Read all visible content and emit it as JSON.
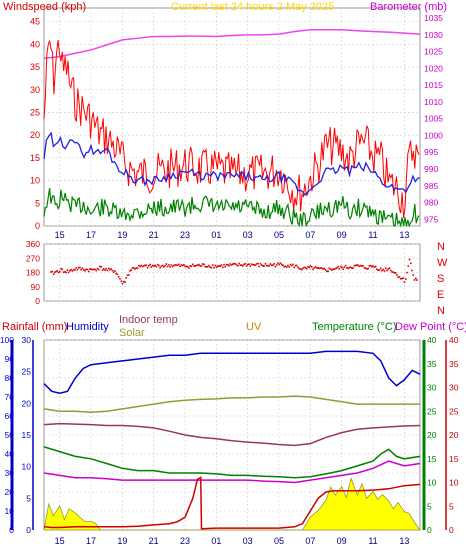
{
  "colors": {
    "wind_speed": "#ff0000",
    "wind_gust": "#ff0000",
    "wind_avg": "#2222dd",
    "wind_low": "#008000",
    "barometer": "#ee44ee",
    "wind_dir": "#dd0000",
    "humidity": "#0000cc",
    "indoor_temp": "#993366",
    "solar": "#999933",
    "uv_fill": "#ffff00",
    "uv_line": "#999933",
    "temperature": "#008000",
    "dew_point": "#cc00cc",
    "rain": "#cc0000",
    "grid": "#cccccc",
    "title": "#ffd700",
    "uv_label": "#cc8800",
    "temp_label": "#008000",
    "dew_label": "#cc00cc"
  },
  "chart_data": [
    {
      "type": "line",
      "title": "Current last 24 hours 2 May 2025",
      "ylabel_left": "Windspeed (kph)",
      "ylabel_right": "Barometer (mb)",
      "x_ticks": [
        "15",
        "17",
        "19",
        "21",
        "23",
        "01",
        "03",
        "05",
        "07",
        "09",
        "11",
        "13"
      ],
      "y_left_ticks": [
        "0",
        "5",
        "10",
        "15",
        "20",
        "25",
        "30",
        "35",
        "40",
        "45"
      ],
      "y_right_ticks": [
        "975",
        "980",
        "985",
        "990",
        "995",
        "1000",
        "1005",
        "1010",
        "1015",
        "1020",
        "1025",
        "1030",
        "1035"
      ],
      "ylim_left": [
        0,
        48
      ],
      "ylim_right": [
        973,
        1038
      ],
      "xlim_hours": [
        14.0,
        38.0
      ],
      "series": [
        {
          "name": "gust",
          "axis": "left",
          "x": [
            14.0,
            14.2,
            14.4,
            14.6,
            14.8,
            15.0,
            15.2,
            15.4,
            15.7,
            16.0,
            16.5,
            17.0,
            17.5,
            18.0,
            18.5,
            19.0,
            19.5,
            20.0,
            21.0,
            22.0,
            23.0,
            24.0,
            25.0,
            26.0,
            27.0,
            28.0,
            29.0,
            30.0,
            30.5,
            31.0,
            31.5,
            32.0,
            32.5,
            33.0,
            33.5,
            34.0,
            34.5,
            35.0,
            35.5,
            36.0,
            36.5,
            37.0,
            37.3,
            37.6,
            38.0
          ],
          "values": [
            28,
            40,
            46,
            36,
            42,
            45,
            38,
            40,
            35,
            32,
            30,
            28,
            25,
            24,
            22,
            19,
            17,
            16,
            16,
            17,
            18,
            17,
            17,
            16,
            16,
            16,
            17,
            12,
            12,
            15,
            18,
            22,
            22,
            21,
            19,
            22,
            23,
            20,
            19,
            14,
            13,
            10,
            19,
            22,
            18
          ]
        },
        {
          "name": "average",
          "axis": "left",
          "x": [
            14.0,
            14.2,
            14.4,
            14.6,
            14.8,
            15.0,
            15.2,
            15.4,
            15.7,
            16.0,
            16.5,
            17.0,
            17.5,
            18.0,
            18.5,
            19.0,
            19.5,
            20.0,
            21.0,
            22.0,
            23.0,
            24.0,
            25.0,
            26.0,
            27.0,
            28.0,
            29.0,
            30.0,
            30.5,
            31.0,
            31.5,
            32.0,
            32.5,
            33.0,
            33.5,
            34.0,
            34.5,
            35.0,
            35.5,
            36.0,
            36.5,
            37.0,
            37.3,
            37.6,
            38.0
          ],
          "values": [
            15,
            19,
            20,
            18,
            17,
            19,
            18,
            18,
            20,
            18,
            16,
            17,
            16,
            17,
            14,
            12,
            11,
            10,
            10,
            11,
            12,
            11,
            11,
            11,
            11,
            10,
            11,
            9,
            7,
            8,
            10,
            12,
            12,
            13,
            12,
            13,
            13,
            12,
            10,
            9,
            8,
            8,
            9,
            11,
            10
          ]
        },
        {
          "name": "lull",
          "axis": "left",
          "x": [
            14.0,
            14.2,
            14.4,
            14.6,
            14.8,
            15.0,
            15.2,
            15.4,
            15.7,
            16.0,
            16.5,
            17.0,
            17.5,
            18.0,
            18.5,
            19.0,
            19.5,
            20.0,
            21.0,
            22.0,
            23.0,
            24.0,
            25.0,
            26.0,
            27.0,
            28.0,
            29.0,
            30.0,
            30.5,
            31.0,
            31.5,
            32.0,
            32.5,
            33.0,
            33.5,
            34.0,
            34.5,
            35.0,
            35.5,
            36.0,
            36.5,
            37.0,
            37.3,
            37.6,
            38.0
          ],
          "values": [
            5,
            8,
            9,
            7,
            6,
            8,
            9,
            7,
            7,
            6,
            7,
            5,
            6,
            6,
            5,
            4,
            5,
            5,
            6,
            6,
            6,
            7,
            6,
            6,
            6,
            5,
            6,
            4,
            3,
            4,
            5,
            6,
            6,
            7,
            5,
            6,
            6,
            5,
            4,
            3,
            3,
            2,
            4,
            5,
            4
          ]
        },
        {
          "name": "barometer",
          "axis": "right",
          "x": [
            14.0,
            15.0,
            16.0,
            17.0,
            18.0,
            19.0,
            20.0,
            21.0,
            22.0,
            23.0,
            24.0,
            25.0,
            26.0,
            27.0,
            28.0,
            29.0,
            30.0,
            31.0,
            32.0,
            33.0,
            34.0,
            35.0,
            36.0,
            37.0,
            38.0
          ],
          "values": [
            1023.0,
            1023.5,
            1024.5,
            1025.5,
            1027.0,
            1028.5,
            1029.0,
            1029.5,
            1029.5,
            1029.6,
            1029.6,
            1029.5,
            1029.8,
            1030.0,
            1030.0,
            1030.2,
            1031.0,
            1031.5,
            1031.5,
            1031.5,
            1031.2,
            1031.0,
            1030.8,
            1030.5,
            1030.2
          ]
        }
      ]
    },
    {
      "type": "scatter",
      "ylabel_right_letters": [
        "N",
        "W",
        "S",
        "E",
        "N"
      ],
      "y_ticks": [
        "0",
        "90",
        "180",
        "270",
        "360"
      ],
      "ylim": [
        0,
        360
      ],
      "xlim_hours": [
        14.0,
        38.0
      ],
      "series": [
        {
          "name": "wind direction",
          "x": [
            14.5,
            15.0,
            15.5,
            16.0,
            16.5,
            17.0,
            17.5,
            18.0,
            18.5,
            19.0,
            19.5,
            20.0,
            21.0,
            22.0,
            23.0,
            24.0,
            25.0,
            26.0,
            27.0,
            28.0,
            29.0,
            30.0,
            30.5,
            31.0,
            31.5,
            32.0,
            32.5,
            33.0,
            33.5,
            34.0,
            34.5,
            35.0,
            35.5,
            36.0,
            36.5,
            37.0,
            37.3,
            37.6
          ],
          "values": [
            180,
            200,
            190,
            210,
            205,
            200,
            215,
            200,
            195,
            110,
            205,
            220,
            225,
            230,
            225,
            230,
            225,
            230,
            235,
            230,
            235,
            225,
            205,
            215,
            205,
            200,
            210,
            215,
            220,
            225,
            215,
            225,
            200,
            210,
            170,
            130,
            270,
            140
          ]
        }
      ]
    },
    {
      "type": "line",
      "labels": {
        "rainfall": "Rainfall (mm)",
        "humidity": "Humidity",
        "indoor_temp": "Indoor temp",
        "solar": "Solar",
        "uv": "UV",
        "temperature": "Temperature (°C)",
        "dew_point": "Dew Point (°C)"
      },
      "x_ticks": [
        "15",
        "17",
        "19",
        "21",
        "23",
        "01",
        "03",
        "05",
        "07",
        "09",
        "11",
        "13"
      ],
      "y_left1_ticks": [
        "0",
        "10",
        "20",
        "30",
        "40",
        "50",
        "60",
        "70",
        "80",
        "90",
        "100"
      ],
      "y_left2_ticks": [
        "0",
        "5",
        "10",
        "15",
        "20",
        "25",
        "30"
      ],
      "y_right1_ticks": [
        "0",
        "5",
        "10",
        "15",
        "20",
        "25",
        "30",
        "35",
        "40"
      ],
      "y_right2_ticks": [
        "0",
        "5",
        "10",
        "15",
        "20",
        "25",
        "30",
        "35",
        "40"
      ],
      "ylim_humidity": [
        0,
        100
      ],
      "ylim_rain": [
        0,
        30
      ],
      "ylim_temp": [
        0,
        40
      ],
      "xlim_hours": [
        14.0,
        38.0
      ],
      "series": [
        {
          "name": "humidity",
          "axis": "humidity",
          "x": [
            14.0,
            14.5,
            15.0,
            15.5,
            16.0,
            16.5,
            17.0,
            18.0,
            19.0,
            20.0,
            21.0,
            22.0,
            23.0,
            24.0,
            25.0,
            26.0,
            27.0,
            28.0,
            29.0,
            30.0,
            31.0,
            32.0,
            33.0,
            34.0,
            35.0,
            35.5,
            36.0,
            36.5,
            37.0,
            37.5,
            38.0
          ],
          "values": [
            77,
            73,
            72,
            73,
            80,
            85,
            87,
            88,
            89,
            90,
            91,
            92,
            92,
            93,
            93,
            93,
            93,
            93,
            93,
            93,
            93,
            94,
            94,
            94,
            93,
            89,
            80,
            76,
            79,
            84,
            82
          ]
        },
        {
          "name": "solar",
          "axis": "temp",
          "x": [
            14.0,
            15.0,
            16.0,
            17.0,
            18.0,
            19.0,
            20.0,
            21.0,
            22.0,
            23.0,
            24.0,
            25.0,
            26.0,
            27.0,
            28.0,
            29.0,
            30.0,
            31.0,
            32.0,
            33.0,
            34.0,
            35.0,
            36.0,
            37.0,
            38.0
          ],
          "values": [
            25.5,
            25.0,
            25.0,
            24.8,
            25.0,
            25.5,
            26.0,
            26.5,
            27.0,
            27.3,
            27.5,
            27.6,
            27.8,
            27.8,
            28.0,
            28.0,
            28.2,
            28.0,
            27.5,
            27.0,
            26.5,
            26.5,
            26.5,
            26.5,
            26.5
          ]
        },
        {
          "name": "indoor temp",
          "axis": "temp",
          "x": [
            14.0,
            15.0,
            16.0,
            17.0,
            18.0,
            19.0,
            20.0,
            21.0,
            22.0,
            23.0,
            24.0,
            25.0,
            26.0,
            27.0,
            28.0,
            29.0,
            30.0,
            31.0,
            32.0,
            33.0,
            34.0,
            35.0,
            36.0,
            37.0,
            38.0
          ],
          "values": [
            22.2,
            22.4,
            22.3,
            22.2,
            22.0,
            22.0,
            21.8,
            21.5,
            20.8,
            20.0,
            19.5,
            19.2,
            18.8,
            18.5,
            18.3,
            18.0,
            17.8,
            18.2,
            19.5,
            20.5,
            21.2,
            21.5,
            21.7,
            21.9,
            22.0
          ]
        },
        {
          "name": "temperature",
          "axis": "temp",
          "x": [
            14.0,
            15.0,
            16.0,
            17.0,
            18.0,
            19.0,
            20.0,
            21.0,
            22.0,
            23.0,
            24.0,
            25.0,
            26.0,
            27.0,
            28.0,
            29.0,
            30.0,
            31.0,
            32.0,
            33.0,
            34.0,
            35.0,
            35.5,
            36.0,
            36.5,
            37.0,
            38.0
          ],
          "values": [
            17.5,
            16.5,
            15.5,
            15.0,
            14.0,
            13.0,
            12.5,
            12.5,
            12.0,
            12.0,
            12.0,
            11.8,
            11.5,
            11.5,
            11.3,
            11.2,
            11.0,
            11.2,
            11.8,
            12.5,
            13.5,
            14.5,
            16.0,
            17.0,
            15.5,
            15.0,
            15.5
          ]
        },
        {
          "name": "dew point",
          "axis": "temp",
          "x": [
            14.0,
            15.0,
            16.0,
            17.0,
            18.0,
            19.0,
            20.0,
            21.0,
            22.0,
            23.0,
            24.0,
            25.0,
            26.0,
            27.0,
            28.0,
            29.0,
            30.0,
            31.0,
            32.0,
            33.0,
            34.0,
            35.0,
            36.0,
            37.0,
            38.0
          ],
          "values": [
            12.0,
            11.5,
            11.0,
            11.0,
            10.8,
            10.5,
            10.5,
            10.5,
            10.5,
            10.5,
            10.5,
            10.5,
            10.5,
            10.5,
            10.3,
            10.2,
            10.0,
            10.5,
            11.0,
            11.5,
            12.0,
            13.0,
            14.5,
            13.5,
            14.0
          ]
        },
        {
          "name": "rainfall",
          "axis": "rain",
          "x": [
            14.0,
            14.5,
            15.0,
            16.0,
            17.0,
            17.5,
            18.0,
            19.0,
            20.0,
            21.0,
            22.0,
            22.5,
            23.0,
            23.5,
            23.8,
            24.0,
            24.05,
            25.0,
            26.0,
            27.0,
            28.0,
            29.0,
            30.0,
            30.5,
            31.0,
            31.5,
            32.0,
            32.5,
            33.0,
            34.0,
            35.0,
            36.0,
            37.0,
            38.0
          ],
          "values": [
            0.5,
            0.4,
            0.4,
            0.5,
            0.5,
            0.5,
            0.5,
            0.5,
            0.6,
            0.8,
            1.0,
            1.3,
            2.0,
            5.0,
            8.0,
            8.3,
            0.2,
            0.3,
            0.3,
            0.3,
            0.3,
            0.3,
            0.5,
            1.0,
            3.0,
            5.0,
            6.0,
            6.2,
            6.2,
            6.2,
            6.3,
            6.5,
            7.0,
            7.2
          ]
        },
        {
          "name": "uv",
          "axis": "temp",
          "x": [
            14.0,
            14.3,
            14.6,
            15.0,
            15.3,
            15.6,
            16.0,
            16.3,
            16.6,
            17.0,
            17.3,
            17.5,
            17.6,
            30.5,
            31.0,
            31.5,
            32.0,
            32.3,
            32.6,
            33.0,
            33.3,
            33.6,
            34.0,
            34.3,
            34.6,
            35.0,
            35.3,
            35.6,
            36.0,
            36.3,
            36.6,
            37.0,
            37.3,
            37.6,
            38.0
          ],
          "values": [
            0,
            5,
            3,
            4,
            2,
            3,
            3,
            2,
            1,
            1,
            0.5,
            0.3,
            0,
            0,
            2,
            4,
            6,
            8,
            7,
            9,
            6,
            10,
            7,
            9,
            6,
            8,
            5,
            7,
            6,
            4,
            5,
            3,
            2,
            1,
            0
          ]
        }
      ]
    }
  ]
}
